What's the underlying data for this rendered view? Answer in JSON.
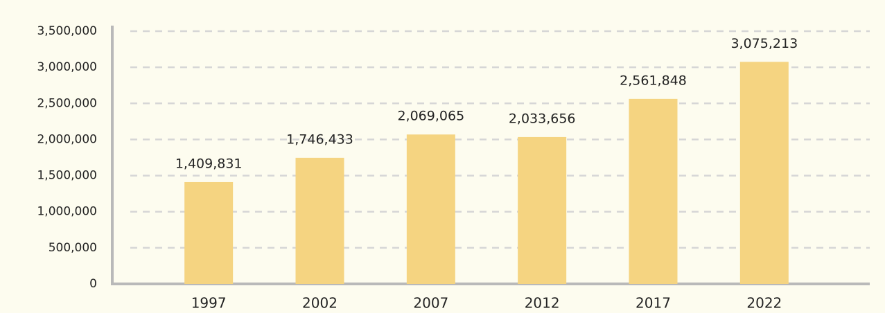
{
  "chart_data": {
    "type": "bar",
    "categories": [
      "1997",
      "2002",
      "2007",
      "2012",
      "2017",
      "2022"
    ],
    "values": [
      1409831,
      1746433,
      2069065,
      2033656,
      2561848,
      3075213
    ],
    "value_labels": [
      "1,409,831",
      "1,746,433",
      "2,069,065",
      "2,033,656",
      "2,561,848",
      "3,075,213"
    ],
    "color": "#f5d481",
    "ylim": [
      0,
      3500000
    ],
    "yticks": [
      0,
      {
        "value": 500000,
        "label": "500,000"
      },
      {
        "value": 1000000,
        "label": "1,000,000"
      },
      {
        "value": 1500000,
        "label": "1,500,000"
      },
      {
        "value": 2000000,
        "label": "2,000,000"
      },
      {
        "value": 2500000,
        "label": "2,500,000"
      },
      {
        "value": 3000000,
        "label": "3,000,000"
      },
      {
        "value": 3500000,
        "label": "3,500,000"
      }
    ],
    "grid": true
  }
}
